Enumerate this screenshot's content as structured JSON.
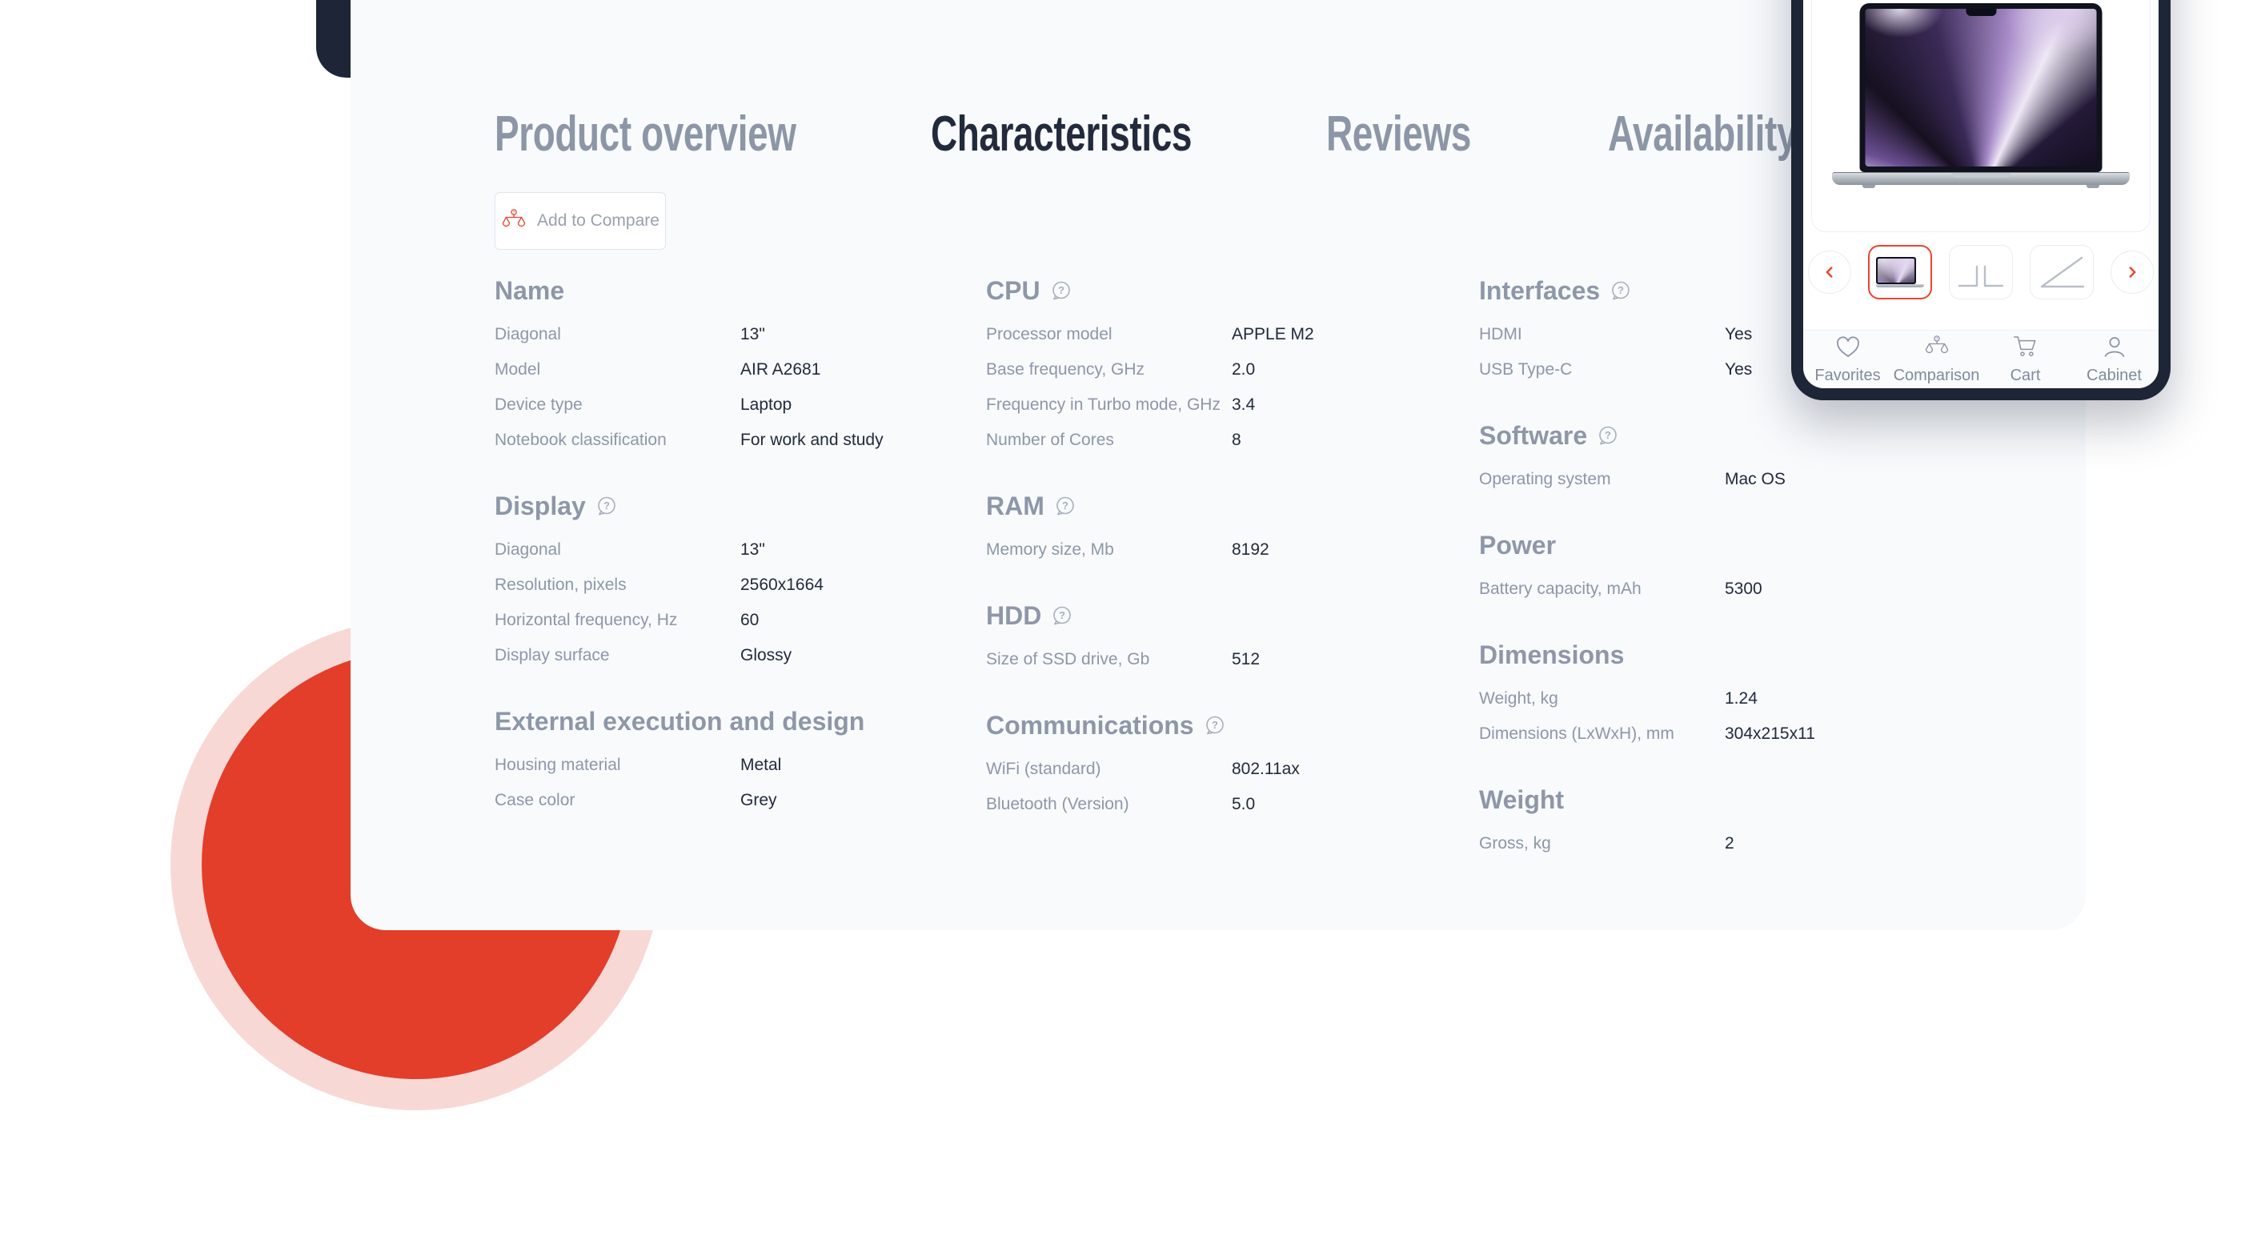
{
  "tabs": [
    {
      "label": "Product overview",
      "active": false
    },
    {
      "label": "Characteristics",
      "active": true
    },
    {
      "label": "Reviews",
      "active": false
    },
    {
      "label": "Availability",
      "active": false
    }
  ],
  "compare_button": {
    "label": "Add to Compare",
    "icon": "scale-icon"
  },
  "specs": {
    "columns": [
      [
        {
          "title": "Name",
          "help": false,
          "rows": [
            {
              "label": "Diagonal",
              "value": "13\""
            },
            {
              "label": "Model",
              "value": "AIR A2681"
            },
            {
              "label": "Device type",
              "value": "Laptop"
            },
            {
              "label": "Notebook classification",
              "value": "For work and study"
            }
          ]
        },
        {
          "title": "Display",
          "help": true,
          "rows": [
            {
              "label": "Diagonal",
              "value": "13\""
            },
            {
              "label": "Resolution, pixels",
              "value": "2560x1664"
            },
            {
              "label": "Horizontal frequency, Hz",
              "value": "60"
            },
            {
              "label": "Display surface",
              "value": "Glossy"
            }
          ]
        },
        {
          "title": "External execution and design",
          "help": false,
          "rows": [
            {
              "label": "Housing material",
              "value": "Metal"
            },
            {
              "label": "Case color",
              "value": "Grey"
            }
          ]
        }
      ],
      [
        {
          "title": "CPU",
          "help": true,
          "rows": [
            {
              "label": "Processor model",
              "value": "APPLE M2"
            },
            {
              "label": "Base frequency, GHz",
              "value": "2.0"
            },
            {
              "label": "Frequency in Turbo mode, GHz",
              "value": "3.4"
            },
            {
              "label": "Number of Cores",
              "value": "8"
            }
          ]
        },
        {
          "title": "RAM",
          "help": true,
          "rows": [
            {
              "label": "Memory size, Mb",
              "value": "8192"
            }
          ]
        },
        {
          "title": "HDD",
          "help": true,
          "rows": [
            {
              "label": "Size of SSD drive, Gb",
              "value": "512"
            }
          ]
        },
        {
          "title": "Communications",
          "help": true,
          "rows": [
            {
              "label": "WiFi (standard)",
              "value": "802.11ax"
            },
            {
              "label": "Bluetooth (Version)",
              "value": "5.0"
            }
          ]
        }
      ],
      [
        {
          "title": "Interfaces",
          "help": true,
          "rows": [
            {
              "label": "HDMI",
              "value": "Yes"
            },
            {
              "label": "USB Type-C",
              "value": "Yes"
            }
          ]
        },
        {
          "title": "Software",
          "help": true,
          "rows": [
            {
              "label": "Operating system",
              "value": "Mac OS"
            }
          ]
        },
        {
          "title": "Power",
          "help": false,
          "rows": [
            {
              "label": "Battery capacity, mAh",
              "value": "5300"
            }
          ]
        },
        {
          "title": "Dimensions",
          "help": false,
          "rows": [
            {
              "label": "Weight, kg",
              "value": "1.24"
            },
            {
              "label": "Dimensions (LxWxH), mm",
              "value": "304x215x11"
            }
          ]
        },
        {
          "title": "Weight",
          "help": false,
          "rows": [
            {
              "label": "Gross, kg",
              "value": "2"
            }
          ]
        }
      ]
    ]
  },
  "product_panel": {
    "carousel": {
      "prev_icon": "chevron-left-icon",
      "next_icon": "chevron-right-icon",
      "thumbnails": [
        {
          "name": "laptop-front-view",
          "selected": true
        },
        {
          "name": "laptop-closed-view",
          "selected": false
        },
        {
          "name": "laptop-side-view",
          "selected": false
        }
      ]
    },
    "actions": [
      {
        "label": "Favorites",
        "icon": "heart-icon"
      },
      {
        "label": "Comparison",
        "icon": "scale-icon"
      },
      {
        "label": "Cart",
        "icon": "cart-icon"
      },
      {
        "label": "Cabinet",
        "icon": "user-icon"
      }
    ]
  },
  "colors": {
    "accent": "#e8452f",
    "red_circle": "#e23e2a",
    "pink_ring": "#f8d8d5",
    "dark_navy": "#1d2537",
    "card_bg": "#f8fafc",
    "title_gray": "#8e97a8",
    "label_gray": "#8e97a8",
    "value_dark": "#222a3c",
    "tab_inactive": "#8d96a6",
    "tab_active": "#222a3c",
    "icon_gray": "#8b93a3"
  }
}
